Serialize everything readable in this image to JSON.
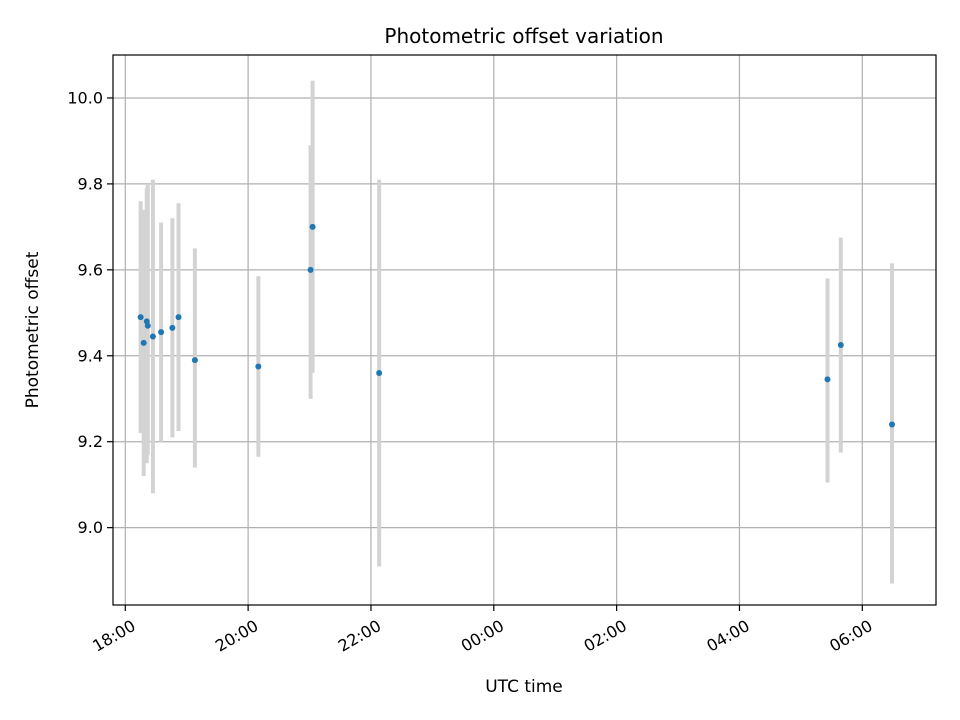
{
  "chart_data": {
    "type": "scatter",
    "title": "Photometric offset variation",
    "xlabel": "UTC time",
    "ylabel": "Photometric offset",
    "x_axis_kind": "time",
    "xlim": [
      "17:48",
      "07:12"
    ],
    "ylim": [
      8.82,
      10.1
    ],
    "x_ticks": [
      "18:00",
      "20:00",
      "22:00",
      "00:00",
      "02:00",
      "04:00",
      "06:00"
    ],
    "y_ticks": [
      "9.0",
      "9.2",
      "9.4",
      "9.6",
      "9.8",
      "10.0"
    ],
    "grid": true,
    "point_color": "#1f77b4",
    "errorbar_color": "#d3d3d3",
    "points": [
      {
        "x": "18:15",
        "y": 9.49,
        "yerr_low": 9.22,
        "yerr_high": 9.76
      },
      {
        "x": "18:18",
        "y": 9.43,
        "yerr_low": 9.12,
        "yerr_high": 9.74
      },
      {
        "x": "18:21",
        "y": 9.48,
        "yerr_low": 9.15,
        "yerr_high": 9.79
      },
      {
        "x": "18:22",
        "y": 9.47,
        "yerr_low": 9.17,
        "yerr_high": 9.8
      },
      {
        "x": "18:27",
        "y": 9.445,
        "yerr_low": 9.08,
        "yerr_high": 9.81
      },
      {
        "x": "18:35",
        "y": 9.455,
        "yerr_low": 9.2,
        "yerr_high": 9.71
      },
      {
        "x": "18:46",
        "y": 9.465,
        "yerr_low": 9.21,
        "yerr_high": 9.72
      },
      {
        "x": "18:52",
        "y": 9.49,
        "yerr_low": 9.225,
        "yerr_high": 9.755
      },
      {
        "x": "19:08",
        "y": 9.39,
        "yerr_low": 9.14,
        "yerr_high": 9.65
      },
      {
        "x": "20:10",
        "y": 9.375,
        "yerr_low": 9.165,
        "yerr_high": 9.585
      },
      {
        "x": "21:01",
        "y": 9.6,
        "yerr_low": 9.3,
        "yerr_high": 9.89
      },
      {
        "x": "21:03",
        "y": 9.7,
        "yerr_low": 9.36,
        "yerr_high": 10.04
      },
      {
        "x": "22:08",
        "y": 9.36,
        "yerr_low": 8.91,
        "yerr_high": 9.81
      },
      {
        "x": "05:26",
        "y": 9.345,
        "yerr_low": 9.105,
        "yerr_high": 9.58
      },
      {
        "x": "05:39",
        "y": 9.425,
        "yerr_low": 9.175,
        "yerr_high": 9.675
      },
      {
        "x": "06:29",
        "y": 9.24,
        "yerr_low": 8.87,
        "yerr_high": 9.615
      }
    ]
  }
}
